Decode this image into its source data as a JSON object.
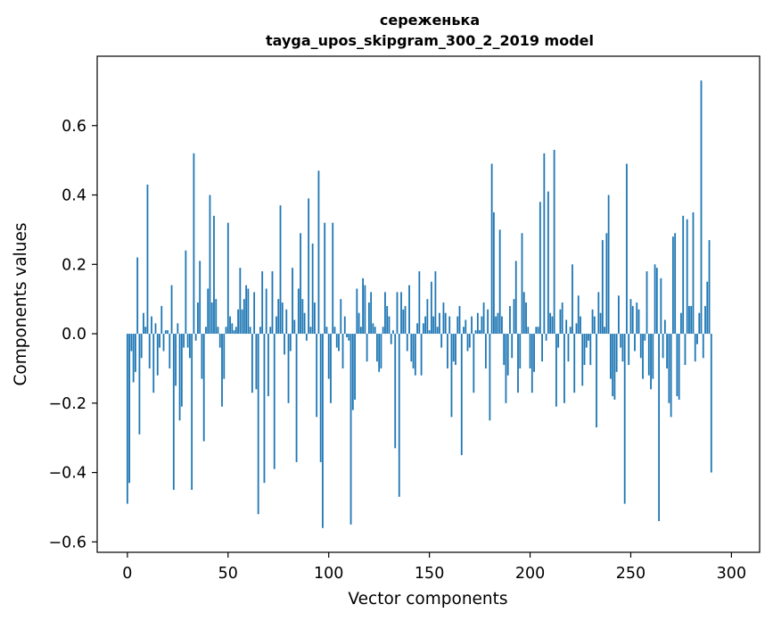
{
  "chart_data": {
    "type": "bar",
    "title_line1": "сереженька",
    "title_line2": "tayga_upos_skipgram_300_2_2019 model",
    "xlabel": "Vector components",
    "ylabel": "Components values",
    "xlim": [
      -15,
      314
    ],
    "ylim": [
      -0.63,
      0.8
    ],
    "xticks": [
      0,
      50,
      100,
      150,
      200,
      250,
      300
    ],
    "xtick_labels": [
      "0",
      "50",
      "100",
      "150",
      "200",
      "250",
      "300"
    ],
    "yticks": [
      -0.6,
      -0.4,
      -0.2,
      0.0,
      0.2,
      0.4,
      0.6
    ],
    "ytick_labels": [
      "−0.6",
      "−0.4",
      "−0.2",
      "0.0",
      "0.2",
      "0.4",
      "0.6"
    ],
    "bar_color": "#1f77b4",
    "values": [
      -0.49,
      -0.43,
      -0.05,
      -0.14,
      -0.11,
      0.22,
      -0.29,
      -0.07,
      0.06,
      0.02,
      0.43,
      -0.1,
      0.05,
      -0.17,
      0.03,
      -0.12,
      -0.04,
      0.08,
      -0.05,
      0.01,
      0.01,
      -0.1,
      0.14,
      -0.45,
      -0.15,
      0.03,
      -0.25,
      -0.21,
      -0.04,
      0.24,
      -0.04,
      -0.07,
      -0.45,
      0.52,
      -0.02,
      0.09,
      0.21,
      -0.13,
      -0.31,
      0.02,
      0.13,
      0.4,
      0.09,
      0.34,
      0.1,
      0.02,
      -0.04,
      -0.21,
      -0.13,
      0.02,
      0.32,
      0.05,
      0.03,
      0.01,
      0.02,
      0.07,
      0.19,
      0.07,
      0.1,
      0.14,
      0.13,
      0.02,
      -0.17,
      0.12,
      -0.16,
      -0.52,
      0.02,
      0.18,
      -0.43,
      0.13,
      -0.18,
      0.02,
      0.18,
      -0.39,
      0.05,
      0.1,
      0.37,
      0.09,
      -0.06,
      0.07,
      -0.2,
      -0.05,
      0.19,
      0.04,
      -0.37,
      0.13,
      0.29,
      0.1,
      0.06,
      -0.02,
      0.39,
      0.02,
      0.26,
      0.09,
      -0.24,
      0.47,
      -0.37,
      -0.56,
      0.32,
      0.02,
      -0.13,
      -0.2,
      0.32,
      0.02,
      -0.04,
      -0.05,
      0.1,
      -0.1,
      0.05,
      -0.01,
      -0.02,
      -0.55,
      -0.22,
      -0.19,
      0.13,
      0.06,
      0.02,
      0.16,
      0.14,
      -0.08,
      0.09,
      0.12,
      0.03,
      0.02,
      -0.08,
      -0.11,
      -0.1,
      0.02,
      0.12,
      0.08,
      0.05,
      -0.03,
      0.01,
      -0.33,
      0.12,
      -0.47,
      0.12,
      0.07,
      0.08,
      -0.05,
      0.14,
      -0.08,
      -0.1,
      -0.12,
      0.03,
      0.18,
      -0.12,
      0.03,
      0.05,
      0.1,
      0.01,
      0.15,
      0.05,
      0.18,
      0.02,
      0.06,
      -0.04,
      0.09,
      0.06,
      -0.1,
      0.05,
      -0.24,
      -0.08,
      -0.09,
      0.05,
      0.08,
      -0.35,
      0.02,
      0.04,
      -0.05,
      -0.04,
      0.05,
      -0.17,
      0.01,
      0.06,
      0.01,
      0.05,
      0.09,
      -0.1,
      0.07,
      -0.25,
      0.49,
      0.35,
      0.05,
      0.06,
      0.3,
      0.05,
      -0.09,
      -0.2,
      -0.12,
      0.08,
      -0.07,
      0.1,
      0.21,
      -0.17,
      -0.1,
      0.29,
      0.12,
      0.09,
      0.02,
      -0.1,
      -0.17,
      -0.11,
      0.02,
      0.02,
      0.38,
      -0.08,
      0.52,
      -0.02,
      0.41,
      0.06,
      0.05,
      0.53,
      -0.21,
      -0.04,
      0.07,
      0.09,
      -0.2,
      0.04,
      -0.08,
      0.02,
      0.2,
      -0.17,
      0.03,
      0.11,
      0.05,
      -0.15,
      -0.09,
      -0.04,
      -0.02,
      -0.09,
      0.07,
      0.05,
      -0.27,
      0.12,
      0.06,
      0.27,
      0.02,
      0.29,
      0.4,
      -0.13,
      -0.18,
      -0.19,
      -0.11,
      0.11,
      -0.04,
      -0.08,
      -0.49,
      0.49,
      -0.09,
      0.1,
      0.08,
      -0.05,
      0.09,
      0.07,
      -0.07,
      -0.13,
      -0.02,
      0.18,
      -0.12,
      -0.16,
      -0.13,
      0.2,
      0.19,
      -0.54,
      0.16,
      -0.07,
      0.04,
      -0.1,
      -0.2,
      -0.24,
      0.28,
      0.29,
      -0.18,
      -0.19,
      0.06,
      0.34,
      -0.09,
      0.33,
      0.08,
      0.08,
      0.35,
      -0.08,
      -0.03,
      0.06,
      0.73,
      -0.07,
      0.08,
      0.15,
      0.27,
      -0.4
    ]
  }
}
